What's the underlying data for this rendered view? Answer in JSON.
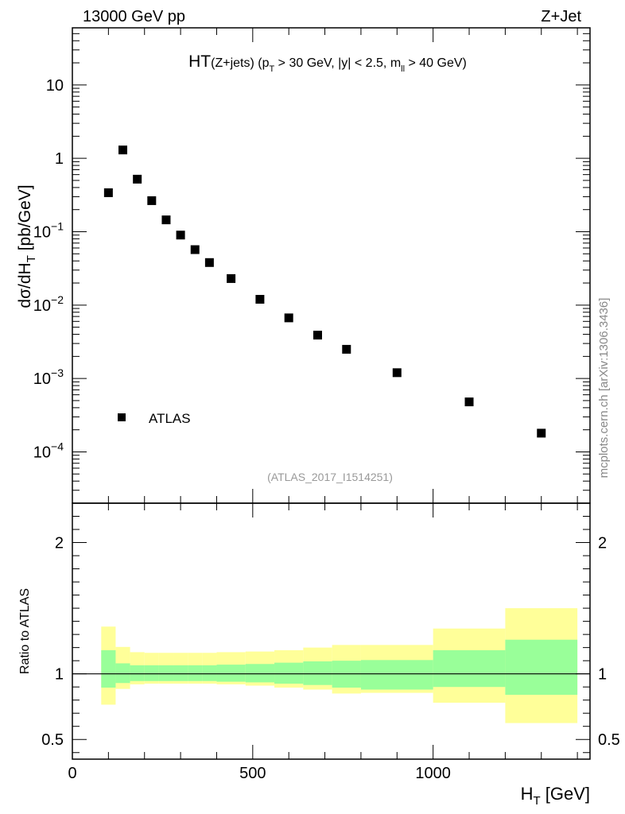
{
  "header": {
    "left_label": "13000 GeV pp",
    "right_label": "Z+Jet",
    "source_label": "(ATLAS_2017_I1514251)",
    "side_label": "mcplots.cern.ch [arXiv:1306.3436]"
  },
  "chart_data": [
    {
      "type": "scatter",
      "title": {
        "main": "HT",
        "sub1": "(Z+jets) (p",
        "sub1_index": "T",
        "sub2": " > 30 GeV, |y| < 2.5, m",
        "sub2_index": "ll",
        "sub3": " > 40 GeV)"
      },
      "ylabel": {
        "main": "dσ/dH",
        "index": "T",
        "unit": " [pb/GeV]"
      },
      "yscale": "log",
      "ylim": [
        2e-05,
        60
      ],
      "xlim": [
        0,
        1435
      ],
      "yticks": [
        {
          "value": 10,
          "label": "10",
          "exp": ""
        },
        {
          "value": 1,
          "label": "1",
          "exp": ""
        },
        {
          "value": 0.1,
          "label": "10",
          "exp": "−1"
        },
        {
          "value": 0.01,
          "label": "10",
          "exp": "−2"
        },
        {
          "value": 0.001,
          "label": "10",
          "exp": "−3"
        },
        {
          "value": 0.0001,
          "label": "10",
          "exp": "−4"
        }
      ],
      "legend": {
        "placement": "bottom-left",
        "entries": [
          "ATLAS"
        ]
      },
      "series": [
        {
          "name": "ATLAS",
          "color": "#000000",
          "x": [
            100,
            140,
            180,
            220,
            260,
            300,
            340,
            380,
            440,
            520,
            600,
            680,
            760,
            900,
            1100,
            1300
          ],
          "y": [
            0.34,
            1.3,
            0.52,
            0.265,
            0.145,
            0.09,
            0.057,
            0.038,
            0.023,
            0.012,
            0.0067,
            0.0039,
            0.0025,
            0.0012,
            0.00048,
            0.00018
          ]
        }
      ]
    },
    {
      "type": "area",
      "ylabel": "Ratio to ATLAS",
      "xlabel": {
        "main": "H",
        "index": "T",
        "unit": " [GeV]"
      },
      "ylim": [
        0.35,
        2.3
      ],
      "xlim": [
        0,
        1435
      ],
      "xticks": [
        0,
        500,
        1000
      ],
      "yticks": [
        0.5,
        1,
        2
      ],
      "reference_line": 1,
      "colors": {
        "inner_band": "#99ff99",
        "outer_band": "#ffff99",
        "line": "#000000"
      },
      "bins": [
        {
          "x": [
            80,
            120
          ],
          "inner": [
            0.895,
            1.18
          ],
          "outer": [
            0.765,
            1.36
          ]
        },
        {
          "x": [
            120,
            160
          ],
          "inner": [
            0.93,
            1.08
          ],
          "outer": [
            0.885,
            1.205
          ]
        },
        {
          "x": [
            160,
            200
          ],
          "inner": [
            0.945,
            1.065
          ],
          "outer": [
            0.92,
            1.165
          ]
        },
        {
          "x": [
            200,
            240
          ],
          "inner": [
            0.945,
            1.065
          ],
          "outer": [
            0.925,
            1.16
          ]
        },
        {
          "x": [
            240,
            280
          ],
          "inner": [
            0.945,
            1.065
          ],
          "outer": [
            0.925,
            1.16
          ]
        },
        {
          "x": [
            280,
            320
          ],
          "inner": [
            0.945,
            1.065
          ],
          "outer": [
            0.925,
            1.16
          ]
        },
        {
          "x": [
            320,
            360
          ],
          "inner": [
            0.945,
            1.065
          ],
          "outer": [
            0.925,
            1.16
          ]
        },
        {
          "x": [
            360,
            400
          ],
          "inner": [
            0.945,
            1.065
          ],
          "outer": [
            0.925,
            1.16
          ]
        },
        {
          "x": [
            400,
            480
          ],
          "inner": [
            0.94,
            1.07
          ],
          "outer": [
            0.92,
            1.165
          ]
        },
        {
          "x": [
            480,
            560
          ],
          "inner": [
            0.935,
            1.075
          ],
          "outer": [
            0.91,
            1.17
          ]
        },
        {
          "x": [
            560,
            640
          ],
          "inner": [
            0.925,
            1.085
          ],
          "outer": [
            0.895,
            1.18
          ]
        },
        {
          "x": [
            640,
            720
          ],
          "inner": [
            0.915,
            1.095
          ],
          "outer": [
            0.88,
            1.2
          ]
        },
        {
          "x": [
            720,
            800
          ],
          "inner": [
            0.895,
            1.1
          ],
          "outer": [
            0.85,
            1.22
          ]
        },
        {
          "x": [
            800,
            1000
          ],
          "inner": [
            0.88,
            1.105
          ],
          "outer": [
            0.855,
            1.22
          ]
        },
        {
          "x": [
            1000,
            1200
          ],
          "inner": [
            0.9,
            1.18
          ],
          "outer": [
            0.78,
            1.345
          ]
        },
        {
          "x": [
            1200,
            1400
          ],
          "inner": [
            0.84,
            1.26
          ],
          "outer": [
            0.625,
            1.5
          ]
        }
      ]
    }
  ]
}
